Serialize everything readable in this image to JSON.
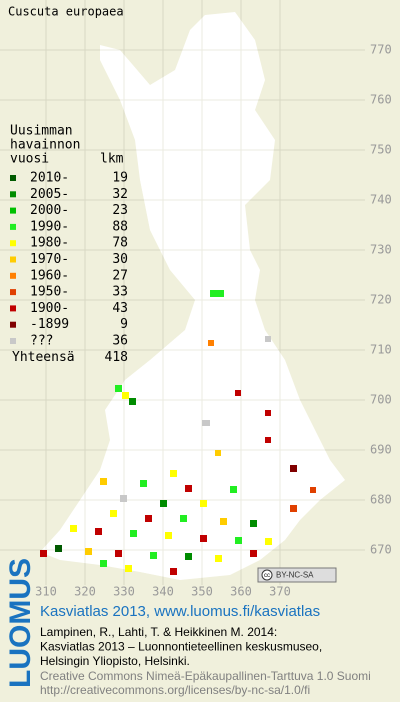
{
  "title": "Cuscuta europaea",
  "legend": {
    "heading": [
      "Uusimman",
      "havainnon",
      "vuosi"
    ],
    "count_heading": "lkm",
    "items": [
      {
        "label": "2010-",
        "count": 19,
        "color": "#005a00"
      },
      {
        "label": "2005-",
        "count": 32,
        "color": "#008c00"
      },
      {
        "label": "2000-",
        "count": 23,
        "color": "#00c000"
      },
      {
        "label": "1990-",
        "count": 88,
        "color": "#22ee22"
      },
      {
        "label": "1980-",
        "count": 78,
        "color": "#ffff00"
      },
      {
        "label": "1970-",
        "count": 30,
        "color": "#ffcc00"
      },
      {
        "label": "1960-",
        "count": 27,
        "color": "#ff8000"
      },
      {
        "label": "1950-",
        "count": 33,
        "color": "#e04000"
      },
      {
        "label": "1900-",
        "count": 43,
        "color": "#c00000"
      },
      {
        "label": "-1899",
        "count": 9,
        "color": "#800000"
      },
      {
        "label": "???",
        "count": 36,
        "color": "#c8c8c8"
      }
    ],
    "total_label": "Yhteensä",
    "total": 418
  },
  "map": {
    "xticks": [
      310,
      320,
      330,
      340,
      350,
      360,
      370
    ],
    "yticks": [
      670,
      680,
      690,
      700,
      710,
      720,
      730,
      740,
      750,
      760,
      770
    ]
  },
  "badge": {
    "cc": "cc",
    "text": "BY-NC-SA"
  },
  "footer": {
    "logo": "LUOMUS",
    "link": "Kasviatlas 2013, www.luomus.fi/kasviatlas",
    "citation": [
      "Lampinen, R., Lahti, T. & Heikkinen M. 2014:",
      "Kasviatlas 2013 – Luonnontieteellinen keskusmuseo,",
      "Helsingin Yliopisto, Helsinki."
    ],
    "license": [
      "Creative Commons Nimeä-Epäkaupallinen-Tarttuva 1.0 Suomi",
      "http://creativecommons.org/licenses/by-nc-sa/1.0/fi"
    ]
  }
}
